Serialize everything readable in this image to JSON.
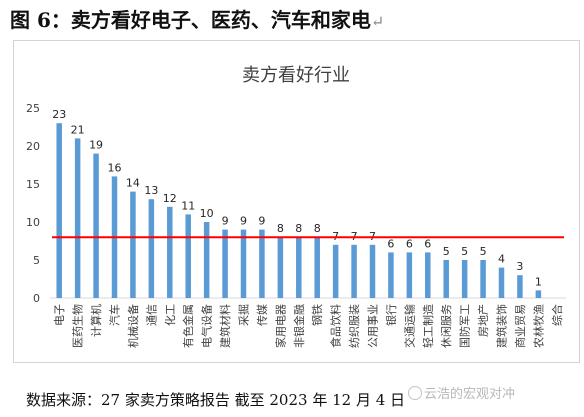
{
  "figure_heading": "图 6：卖方看好电子、医药、汽车和家电",
  "return_mark": "↵",
  "source_note": "数据来源：27 家卖方策略报告 截至 2023 年 12 月 4 日",
  "watermark_text": "云浩的宏观对冲",
  "colors": {
    "bar": "#5b9bd5",
    "reference_line": "#ff0000",
    "axis_text": "#404040",
    "grid": "#d9d9d9"
  },
  "chart_data": {
    "type": "bar",
    "title": "卖方看好行业",
    "xlabel": "",
    "ylabel": "",
    "ylim": [
      0,
      25
    ],
    "yticks": [
      0,
      5,
      10,
      15,
      20,
      25
    ],
    "grid": false,
    "reference_line": 8,
    "categories": [
      "电子",
      "医药生物",
      "计算机",
      "汽车",
      "机械设备",
      "通信",
      "化工",
      "有色金属",
      "电气设备",
      "建筑材料",
      "采掘",
      "传媒",
      "家用电器",
      "非银金融",
      "钢铁",
      "食品饮料",
      "纺织服装",
      "公用事业",
      "银行",
      "交通运输",
      "轻工制造",
      "休闲服务",
      "国防军工",
      "房地产",
      "建筑装饰",
      "商业贸易",
      "农林牧渔",
      "综合"
    ],
    "values": [
      23,
      21,
      19,
      16,
      14,
      13,
      12,
      11,
      10,
      9,
      9,
      9,
      8,
      8,
      8,
      7,
      7,
      7,
      6,
      6,
      6,
      5,
      5,
      5,
      4,
      3,
      1,
      null
    ]
  }
}
